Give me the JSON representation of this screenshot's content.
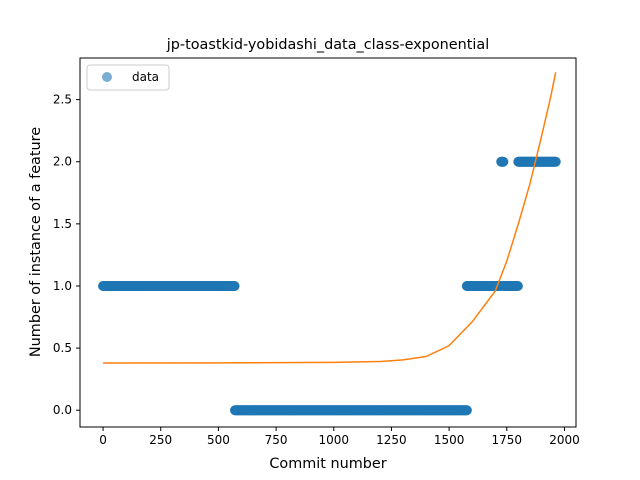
{
  "chart_data": {
    "type": "scatter",
    "title": "jp-toastkid-yobidashi_data_class-exponential",
    "xlabel": "Commit number",
    "ylabel": "Number of instance of a feature",
    "xlim": [
      -100,
      2050
    ],
    "ylim": [
      -0.135,
      2.835
    ],
    "xticks": [
      0,
      250,
      500,
      750,
      1000,
      1250,
      1500,
      1750,
      2000
    ],
    "xtick_labels": [
      "0",
      "250",
      "500",
      "750",
      "1000",
      "1250",
      "1500",
      "1750",
      "2000"
    ],
    "yticks": [
      0.0,
      0.5,
      1.0,
      1.5,
      2.0,
      2.5
    ],
    "ytick_labels": [
      "0.0",
      "0.5",
      "1.0",
      "1.5",
      "2.0",
      "2.5"
    ],
    "grid": false,
    "legend": {
      "position": "top-left",
      "entries": [
        "data"
      ]
    },
    "series": [
      {
        "name": "data",
        "kind": "points",
        "color": "#1f77b4",
        "runs": [
          {
            "x_start": 0,
            "x_end": 572,
            "y": 1
          },
          {
            "x_start": 572,
            "x_end": 1577,
            "y": 0
          },
          {
            "x_start": 1577,
            "x_end": 1726,
            "y": 1
          },
          {
            "x_start": 1726,
            "x_end": 1735,
            "y": 2
          },
          {
            "x_start": 1735,
            "x_end": 1800,
            "y": 1
          },
          {
            "x_start": 1800,
            "x_end": 1962,
            "y": 2
          }
        ]
      },
      {
        "kind": "line",
        "color": "#ff7f0e",
        "model": "exponential",
        "x_range": [
          0,
          1962
        ],
        "points": [
          [
            0,
            0.38
          ],
          [
            500,
            0.381
          ],
          [
            1000,
            0.385
          ],
          [
            1200,
            0.392
          ],
          [
            1300,
            0.405
          ],
          [
            1400,
            0.432
          ],
          [
            1500,
            0.52
          ],
          [
            1600,
            0.712
          ],
          [
            1700,
            0.96
          ],
          [
            1750,
            1.2
          ],
          [
            1800,
            1.5
          ],
          [
            1850,
            1.82
          ],
          [
            1900,
            2.2
          ],
          [
            1940,
            2.52
          ],
          [
            1962,
            2.72
          ]
        ]
      }
    ]
  }
}
